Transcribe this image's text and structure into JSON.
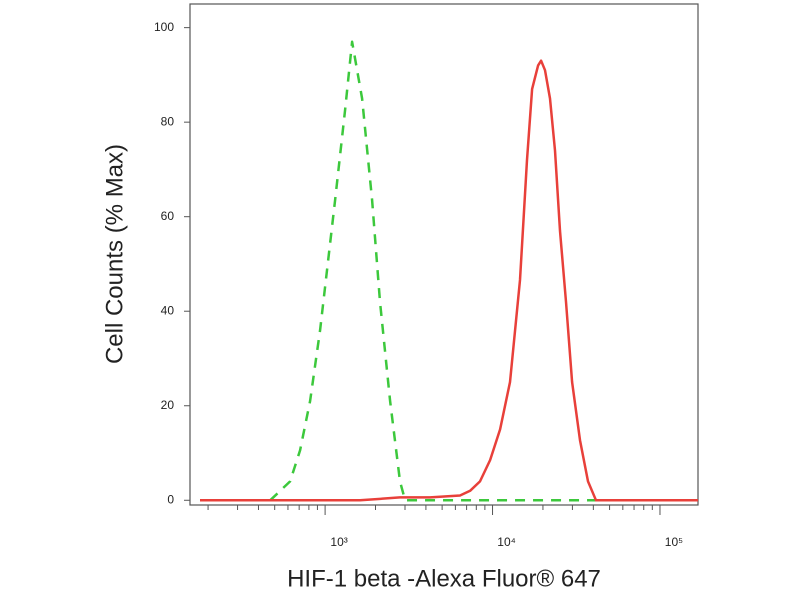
{
  "chart_data": {
    "type": "line",
    "xlabel": "HIF-1 beta -Alexa Fluor® 647",
    "ylabel": "Cell Counts (% Max)",
    "xscale": "log",
    "xlim": [
      156,
      168700
    ],
    "ylim": [
      -1,
      105
    ],
    "xticks": [
      {
        "value": 1000,
        "label": "10³"
      },
      {
        "value": 10000,
        "label": "10⁴"
      },
      {
        "value": 100000,
        "label": "10⁵"
      }
    ],
    "xminorticks": [
      200,
      300,
      400,
      500,
      600,
      700,
      800,
      900,
      2000,
      3000,
      4000,
      5000,
      6000,
      7000,
      8000,
      9000,
      20000,
      30000,
      40000,
      50000,
      60000,
      70000,
      80000,
      90000
    ],
    "yticks": [
      0,
      20,
      40,
      60,
      80,
      100
    ],
    "grid": false,
    "series": [
      {
        "color": "#3cc83c",
        "dash": true,
        "x": [
          470,
          618,
          709,
          814,
          934,
          1147,
          1316,
          1449,
          1663,
          1909,
          2129,
          2443,
          2803,
          3004,
          43800
        ],
        "values": [
          0,
          4,
          10.6,
          21,
          36,
          63.5,
          82.6,
          97,
          85,
          63.5,
          42,
          21,
          4,
          0,
          0
        ]
      },
      {
        "color": "#e8403a",
        "dash": false,
        "x": [
          179,
          1618,
          2803,
          4236,
          6396,
          7342,
          8421,
          9664,
          11090,
          12720,
          14590,
          16070,
          17220,
          18710,
          19500,
          20580,
          22030,
          23620,
          25300,
          27480,
          29850,
          33290,
          37150,
          41500,
          50230,
          168600
        ],
        "values": [
          0,
          0,
          0.6,
          0.6,
          1,
          2,
          4,
          8.5,
          15,
          25,
          46.6,
          72,
          87,
          92,
          93,
          91,
          85,
          74,
          57,
          42,
          25,
          12.7,
          4,
          0,
          0,
          0
        ]
      }
    ]
  }
}
